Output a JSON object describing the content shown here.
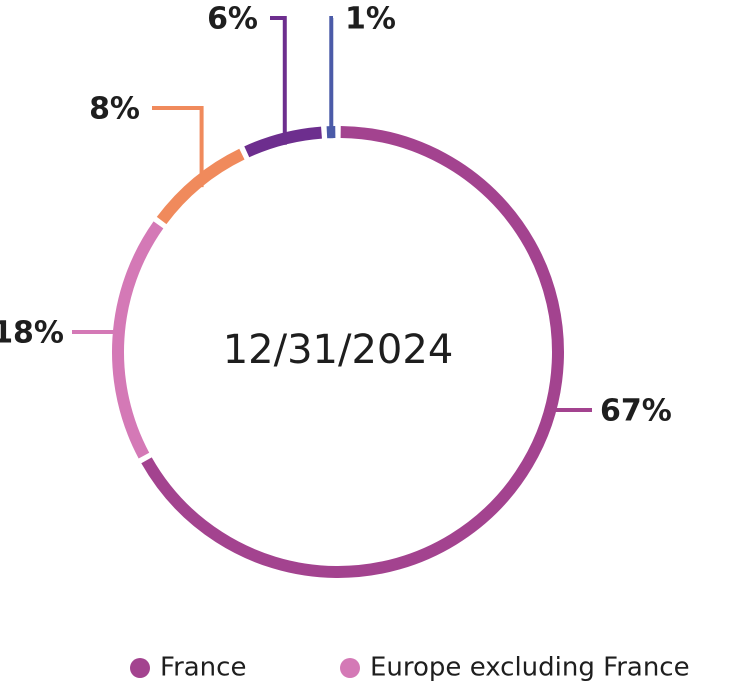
{
  "chart_data": {
    "type": "pie",
    "center_label": "12/31/2024",
    "categories": [
      "France",
      "Europe excluding France",
      null,
      null,
      null
    ],
    "values": [
      67,
      18,
      8,
      6,
      1
    ],
    "value_labels": [
      "67%",
      "18%",
      "8%",
      "6%",
      "1%"
    ],
    "colors": [
      "#a3438f",
      "#d479b6",
      "#f08a5c",
      "#6d2e8e",
      "#4b5ba8"
    ],
    "legend": "bottom"
  }
}
